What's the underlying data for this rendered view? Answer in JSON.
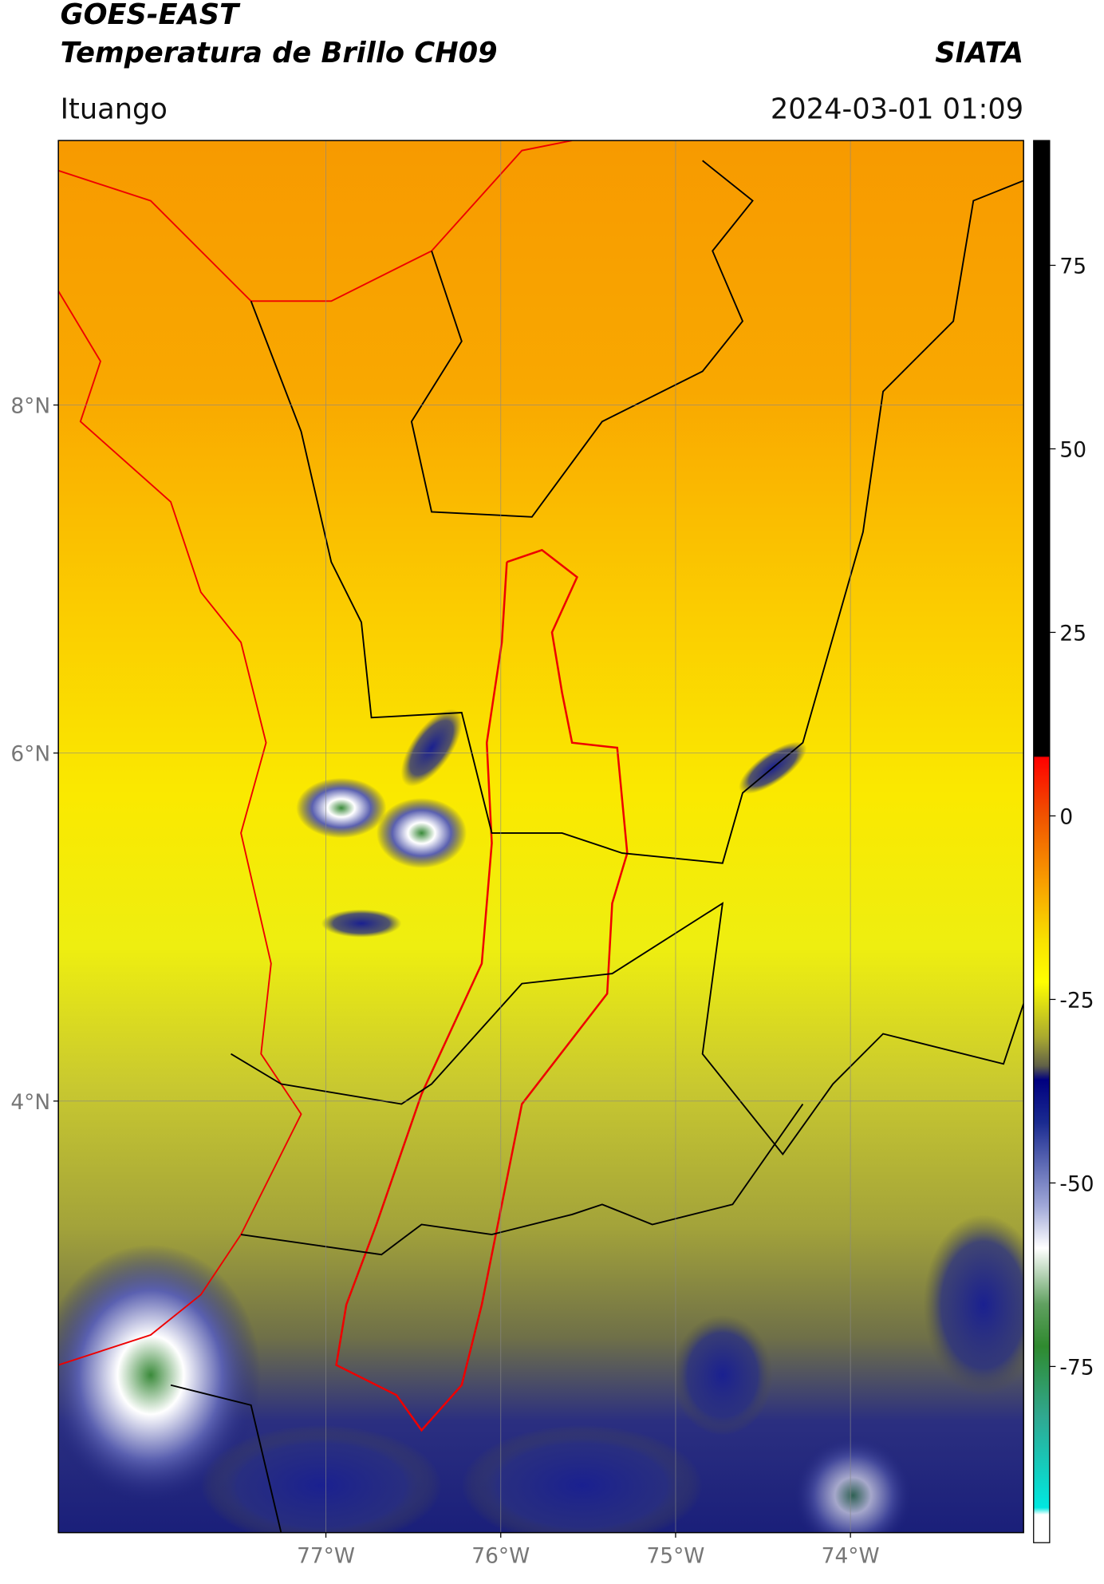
{
  "header": {
    "title": "GOES-EAST",
    "subtitle": "Temperatura de Brillo CH09",
    "source": "SIATA",
    "region": "Ituango",
    "datetime": "2024-03-01 01:09"
  },
  "map": {
    "latlim": [
      1.52,
      9.52
    ],
    "lonlim": [
      -78.53,
      -73.01
    ],
    "lat_ticks": [
      {
        "value": 8,
        "label": "8°N"
      },
      {
        "value": 6,
        "label": "6°N"
      },
      {
        "value": 4,
        "label": "4°N"
      }
    ],
    "lon_ticks": [
      {
        "value": -77,
        "label": "77°W"
      },
      {
        "value": -76,
        "label": "76°W"
      },
      {
        "value": -75,
        "label": "75°W"
      },
      {
        "value": -74,
        "label": "74°W"
      }
    ]
  },
  "colorbar": {
    "lim": [
      -99,
      92
    ],
    "ticks": [
      75,
      50,
      25,
      0,
      -25,
      -50,
      -75
    ]
  }
}
